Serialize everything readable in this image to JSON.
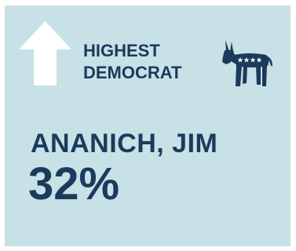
{
  "header": {
    "line1": "HIGHEST",
    "line2": "DEMOCRAT"
  },
  "icons": {
    "arrow": "up-arrow-icon",
    "party": "democrat-donkey-icon"
  },
  "legislator": {
    "name": "ANANICH, JIM",
    "percent": "32%"
  },
  "colors": {
    "card_background": "#c7e1e7",
    "text": "#1b3a5c",
    "arrow": "#ffffff",
    "donkey": "#1b3a5c"
  }
}
